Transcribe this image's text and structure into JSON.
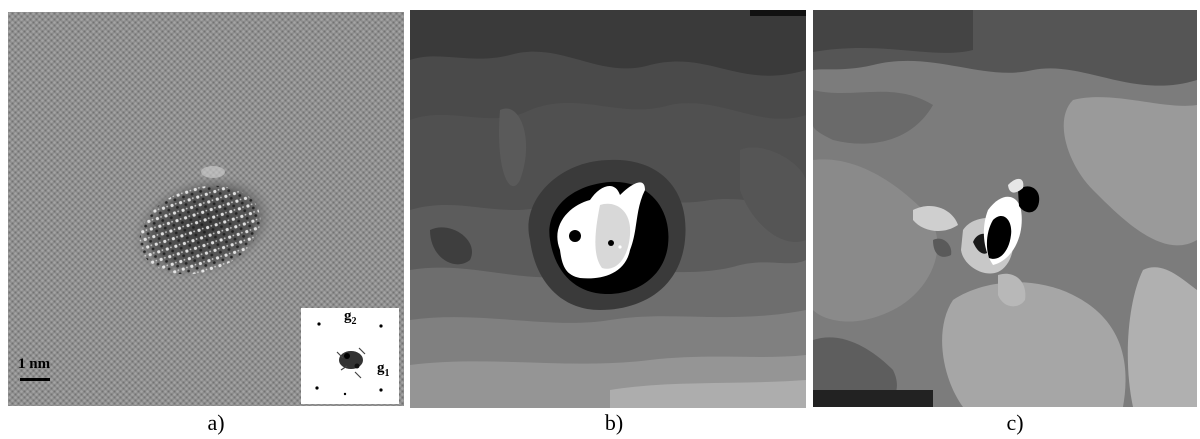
{
  "panels": [
    {
      "id": "a",
      "caption": "a)",
      "scale_bar_label": "1 nm",
      "inset": {
        "labels": [
          "g",
          "2",
          "g",
          "1"
        ]
      }
    },
    {
      "id": "b",
      "caption": "b)"
    },
    {
      "id": "c",
      "caption": "c)"
    }
  ],
  "colors": {
    "background": "#ffffff",
    "lattice_gray": "#8a8a8a",
    "caption_text": "#000000"
  }
}
